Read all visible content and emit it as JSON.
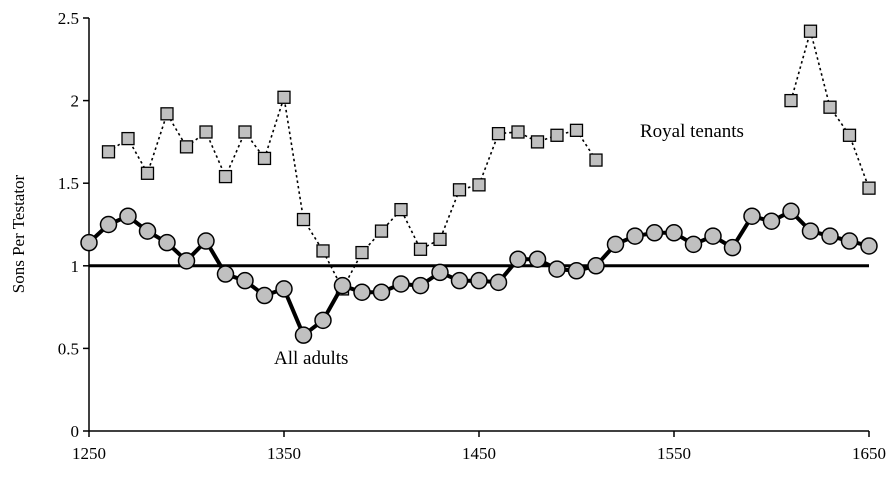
{
  "chart_data": {
    "type": "line",
    "title": "",
    "xlabel": "",
    "ylabel": "Sons Per Testator",
    "xlim": [
      1250,
      1650
    ],
    "ylim": [
      0,
      2.5
    ],
    "x_ticks": [
      1250,
      1350,
      1450,
      1550,
      1650
    ],
    "y_ticks": [
      "0",
      "0.5",
      "1",
      "1.5",
      "2",
      "2.5"
    ],
    "grid": false,
    "legend": "none",
    "reference_line": 1,
    "annotations": [
      {
        "text": "All adults",
        "series": "all_adults"
      },
      {
        "text": "Royal tenants",
        "series": "royal_tenants"
      }
    ],
    "series": [
      {
        "key": "royal_tenants",
        "marker": "square",
        "line_style": "dotted",
        "points": [
          [
            1260,
            1.69
          ],
          [
            1270,
            1.77
          ],
          [
            1280,
            1.56
          ],
          [
            1290,
            1.92
          ],
          [
            1300,
            1.72
          ],
          [
            1310,
            1.81
          ],
          [
            1320,
            1.54
          ],
          [
            1330,
            1.81
          ],
          [
            1340,
            1.65
          ],
          [
            1350,
            2.02
          ],
          [
            1360,
            1.28
          ],
          [
            1370,
            1.09
          ],
          [
            1380,
            0.86
          ],
          [
            1390,
            1.08
          ],
          [
            1400,
            1.21
          ],
          [
            1410,
            1.34
          ],
          [
            1420,
            1.1
          ],
          [
            1430,
            1.16
          ],
          [
            1440,
            1.46
          ],
          [
            1450,
            1.49
          ],
          [
            1460,
            1.8
          ],
          [
            1470,
            1.81
          ],
          [
            1480,
            1.75
          ],
          [
            1490,
            1.79
          ],
          [
            1500,
            1.82
          ],
          [
            1510,
            1.64
          ],
          null,
          [
            1610,
            2.0
          ],
          [
            1620,
            2.42
          ],
          [
            1630,
            1.96
          ],
          [
            1640,
            1.79
          ],
          [
            1650,
            1.47
          ]
        ]
      },
      {
        "key": "all_adults",
        "marker": "circle",
        "line_style": "solid",
        "points": [
          [
            1250,
            1.14
          ],
          [
            1260,
            1.25
          ],
          [
            1270,
            1.3
          ],
          [
            1280,
            1.21
          ],
          [
            1290,
            1.14
          ],
          [
            1300,
            1.03
          ],
          [
            1310,
            1.15
          ],
          [
            1320,
            0.95
          ],
          [
            1330,
            0.91
          ],
          [
            1340,
            0.82
          ],
          [
            1350,
            0.86
          ],
          [
            1360,
            0.58
          ],
          [
            1370,
            0.67
          ],
          [
            1380,
            0.88
          ],
          [
            1390,
            0.84
          ],
          [
            1400,
            0.84
          ],
          [
            1410,
            0.89
          ],
          [
            1420,
            0.88
          ],
          [
            1430,
            0.96
          ],
          [
            1440,
            0.91
          ],
          [
            1450,
            0.91
          ],
          [
            1460,
            0.9
          ],
          [
            1470,
            1.04
          ],
          [
            1480,
            1.04
          ],
          [
            1490,
            0.98
          ],
          [
            1500,
            0.97
          ],
          [
            1510,
            1.0
          ],
          [
            1520,
            1.13
          ],
          [
            1530,
            1.18
          ],
          [
            1540,
            1.2
          ],
          [
            1550,
            1.2
          ],
          [
            1560,
            1.13
          ],
          [
            1570,
            1.18
          ],
          [
            1580,
            1.11
          ],
          [
            1590,
            1.3
          ],
          [
            1600,
            1.27
          ],
          [
            1610,
            1.33
          ],
          [
            1620,
            1.21
          ],
          [
            1630,
            1.18
          ],
          [
            1640,
            1.15
          ],
          [
            1650,
            1.12
          ]
        ]
      }
    ]
  }
}
